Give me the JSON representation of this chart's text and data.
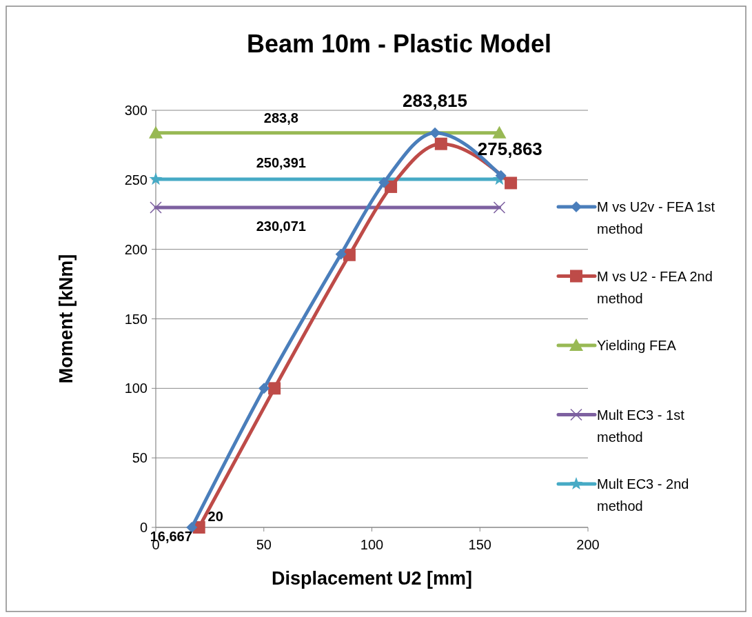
{
  "chart_data": {
    "type": "line",
    "title": "Beam 10m - Plastic Model",
    "xlabel": "Displacement U2 [mm]",
    "ylabel": "Moment [kNm]",
    "xlim": [
      0,
      200
    ],
    "xticks": [
      0,
      50,
      100,
      150,
      200
    ],
    "ylim": [
      0,
      300
    ],
    "yticks": [
      0,
      50,
      100,
      150,
      200,
      250,
      300
    ],
    "grid": "y",
    "legend": "right",
    "series": [
      {
        "name": "M vs U2v - FEA 1st method",
        "color": "#4a7ebb",
        "marker": "diamond",
        "x": [
          16.667,
          50.1,
          85.7,
          105.6,
          129.2,
          159.7
        ],
        "values": [
          0,
          100,
          196.5,
          248,
          283.815,
          253
        ]
      },
      {
        "name": "M vs U2 - FEA 2nd method",
        "color": "#be4b48",
        "marker": "square",
        "x": [
          20,
          54.9,
          89.6,
          108.8,
          132,
          164.3
        ],
        "values": [
          0,
          100,
          196,
          245,
          275.863,
          247.7
        ]
      },
      {
        "name": "Yielding FEA",
        "color": "#98b954",
        "marker": "triangle",
        "x": [
          0,
          159
        ],
        "values": [
          283.8,
          283.8
        ]
      },
      {
        "name": "Mult EC3 - 1st method",
        "color": "#7d60a0",
        "marker": "cross",
        "x": [
          0,
          159
        ],
        "values": [
          230.071,
          230.071
        ]
      },
      {
        "name": "Mult EC3 - 2nd method",
        "color": "#46aac5",
        "marker": "star",
        "x": [
          0,
          159
        ],
        "values": [
          250.391,
          250.391
        ]
      }
    ],
    "annotations": [
      {
        "text": "283,8",
        "x": 58,
        "y": 283.8
      },
      {
        "text": "250,391",
        "x": 58,
        "y": 250.391
      },
      {
        "text": "230,071",
        "x": 58,
        "y": 230.071
      },
      {
        "text": "283,815",
        "x": 129.2,
        "y": 283.815
      },
      {
        "text": "275,863",
        "x": 132,
        "y": 275.863
      },
      {
        "text": "16,667",
        "x": 16.667,
        "y": 0
      },
      {
        "text": "20",
        "x": 20,
        "y": 0
      }
    ]
  }
}
